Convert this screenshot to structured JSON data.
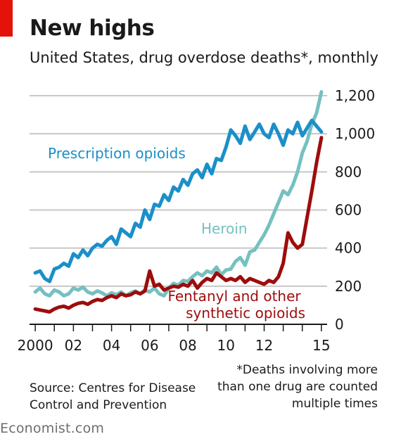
{
  "title": "New highs",
  "subtitle": "United States, drug overdose deaths*, monthly",
  "source": "Source: Centres for Disease Control and Prevention",
  "footnote": "*Deaths involving more than one drug are counted multiple times",
  "brand": "Economist.com",
  "colors": {
    "prescription": "#1b8fc9",
    "heroin": "#76c0c1",
    "fentanyl": "#9e0c0c",
    "grid": "#c7c7c7",
    "brand_red": "#e3120b"
  },
  "chart_data": {
    "type": "line",
    "ylim": [
      0,
      1200
    ],
    "xlim": [
      1999.7,
      2015.3
    ],
    "y_ticks": [
      0,
      200,
      400,
      600,
      800,
      1000,
      1200
    ],
    "y_tick_labels": [
      "0",
      "200",
      "400",
      "600",
      "800",
      "1,000",
      "1,200"
    ],
    "x_ticks": [
      2000,
      2002,
      2004,
      2006,
      2008,
      2010,
      2012,
      2015
    ],
    "x_tick_labels": [
      "2000",
      "02",
      "04",
      "06",
      "08",
      "10",
      "12",
      "15"
    ],
    "series": [
      {
        "key": "prescription",
        "name": "Prescription opioids",
        "x": [
          2000.0,
          2000.25,
          2000.5,
          2000.75,
          2001.0,
          2001.25,
          2001.5,
          2001.75,
          2002.0,
          2002.25,
          2002.5,
          2002.75,
          2003.0,
          2003.25,
          2003.5,
          2003.75,
          2004.0,
          2004.25,
          2004.5,
          2004.75,
          2005.0,
          2005.25,
          2005.5,
          2005.75,
          2006.0,
          2006.25,
          2006.5,
          2006.75,
          2007.0,
          2007.25,
          2007.5,
          2007.75,
          2008.0,
          2008.25,
          2008.5,
          2008.75,
          2009.0,
          2009.25,
          2009.5,
          2009.75,
          2010.0,
          2010.25,
          2010.5,
          2010.75,
          2011.0,
          2011.25,
          2011.5,
          2011.75,
          2012.0,
          2012.25,
          2012.5,
          2012.75,
          2013.0,
          2013.25,
          2013.5,
          2013.75,
          2014.0,
          2014.25,
          2014.5,
          2014.75,
          2015.0
        ],
        "y": [
          270,
          280,
          240,
          225,
          290,
          300,
          320,
          305,
          370,
          350,
          390,
          360,
          400,
          420,
          410,
          440,
          460,
          420,
          500,
          480,
          460,
          530,
          510,
          600,
          550,
          630,
          620,
          680,
          650,
          720,
          700,
          760,
          730,
          790,
          810,
          770,
          840,
          790,
          870,
          860,
          930,
          1020,
          990,
          950,
          1040,
          970,
          1010,
          1050,
          1000,
          980,
          1050,
          1000,
          940,
          1020,
          1000,
          1060,
          990,
          1030,
          1070,
          1040,
          1010
        ]
      },
      {
        "key": "heroin",
        "name": "Heroin",
        "x": [
          2000.0,
          2000.25,
          2000.5,
          2000.75,
          2001.0,
          2001.25,
          2001.5,
          2001.75,
          2002.0,
          2002.25,
          2002.5,
          2002.75,
          2003.0,
          2003.25,
          2003.5,
          2003.75,
          2004.0,
          2004.25,
          2004.5,
          2004.75,
          2005.0,
          2005.25,
          2005.5,
          2005.75,
          2006.0,
          2006.25,
          2006.5,
          2006.75,
          2007.0,
          2007.25,
          2007.5,
          2007.75,
          2008.0,
          2008.25,
          2008.5,
          2008.75,
          2009.0,
          2009.25,
          2009.5,
          2009.75,
          2010.0,
          2010.25,
          2010.5,
          2010.75,
          2011.0,
          2011.25,
          2011.5,
          2011.75,
          2012.0,
          2012.25,
          2012.5,
          2012.75,
          2013.0,
          2013.25,
          2013.5,
          2013.75,
          2014.0,
          2014.25,
          2014.5,
          2014.75,
          2015.0
        ],
        "y": [
          170,
          190,
          160,
          150,
          180,
          170,
          150,
          160,
          190,
          180,
          195,
          170,
          160,
          175,
          165,
          150,
          165,
          155,
          170,
          150,
          165,
          175,
          160,
          180,
          170,
          190,
          160,
          150,
          190,
          215,
          205,
          230,
          225,
          250,
          270,
          255,
          280,
          270,
          300,
          260,
          285,
          290,
          330,
          350,
          310,
          380,
          390,
          430,
          470,
          520,
          580,
          640,
          700,
          680,
          730,
          800,
          900,
          960,
          1050,
          1110,
          1220
        ]
      },
      {
        "key": "fentanyl",
        "name": "Fentanyl and other synthetic opioids",
        "x": [
          2000.0,
          2000.25,
          2000.5,
          2000.75,
          2001.0,
          2001.25,
          2001.5,
          2001.75,
          2002.0,
          2002.25,
          2002.5,
          2002.75,
          2003.0,
          2003.25,
          2003.5,
          2003.75,
          2004.0,
          2004.25,
          2004.5,
          2004.75,
          2005.0,
          2005.25,
          2005.5,
          2005.75,
          2006.0,
          2006.25,
          2006.5,
          2006.75,
          2007.0,
          2007.25,
          2007.5,
          2007.75,
          2008.0,
          2008.25,
          2008.5,
          2008.75,
          2009.0,
          2009.25,
          2009.5,
          2009.75,
          2010.0,
          2010.25,
          2010.5,
          2010.75,
          2011.0,
          2011.25,
          2011.5,
          2011.75,
          2012.0,
          2012.25,
          2012.5,
          2012.75,
          2013.0,
          2013.25,
          2013.5,
          2013.75,
          2014.0,
          2014.25,
          2014.5,
          2014.75,
          2015.0
        ],
        "y": [
          80,
          75,
          70,
          65,
          80,
          90,
          95,
          85,
          100,
          110,
          115,
          105,
          120,
          130,
          125,
          140,
          150,
          140,
          160,
          150,
          155,
          170,
          160,
          175,
          280,
          200,
          210,
          180,
          190,
          200,
          195,
          210,
          200,
          230,
          190,
          220,
          240,
          230,
          270,
          250,
          230,
          240,
          230,
          250,
          220,
          240,
          230,
          220,
          210,
          230,
          220,
          250,
          320,
          480,
          430,
          400,
          420,
          560,
          700,
          850,
          980
        ]
      }
    ]
  }
}
